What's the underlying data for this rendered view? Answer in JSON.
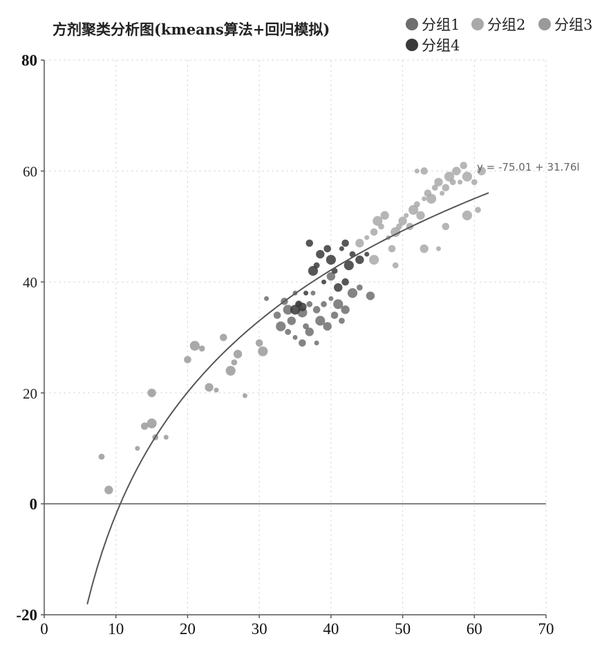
{
  "chart_data": {
    "type": "scatter",
    "title": "方剂聚类分析图(kmeans算法+回归模拟)",
    "xlim": [
      0,
      70
    ],
    "ylim": [
      -20,
      80
    ],
    "x_ticks": [
      "0",
      "10",
      "20",
      "30",
      "40",
      "50",
      "60",
      "70"
    ],
    "y_ticks": [
      "-20",
      "0",
      "20",
      "40",
      "60",
      "80"
    ],
    "grid": true,
    "legend_position": "top-right",
    "colors": {
      "分组1": "#6e6e6e",
      "分组2": "#a9a9a9",
      "分组3": "#9a9a9a",
      "分组4": "#3a3a3a",
      "trend": "#555555"
    },
    "series": [
      {
        "name": "分组1",
        "points": [
          [
            31,
            37
          ],
          [
            32.5,
            34
          ],
          [
            33,
            32
          ],
          [
            34,
            31
          ],
          [
            34.5,
            33
          ],
          [
            35,
            30
          ],
          [
            35.5,
            36
          ],
          [
            36,
            34.5
          ],
          [
            36.5,
            32
          ],
          [
            37,
            31
          ],
          [
            37.5,
            38
          ],
          [
            38,
            35
          ],
          [
            38.5,
            33
          ],
          [
            39,
            36
          ],
          [
            39.5,
            32
          ],
          [
            40,
            37
          ],
          [
            40.5,
            34
          ],
          [
            41,
            36
          ],
          [
            41.5,
            33
          ],
          [
            42,
            35
          ],
          [
            38,
            29
          ],
          [
            36,
            29
          ],
          [
            43,
            38
          ],
          [
            44,
            39
          ],
          [
            45.5,
            37.5
          ],
          [
            35,
            38
          ],
          [
            33.5,
            36.5
          ],
          [
            34,
            35
          ],
          [
            37,
            36
          ],
          [
            40,
            41
          ]
        ]
      },
      {
        "name": "分组2",
        "points": [
          [
            44,
            47
          ],
          [
            45,
            48
          ],
          [
            46,
            49
          ],
          [
            46.5,
            51
          ],
          [
            47,
            50
          ],
          [
            47.5,
            52
          ],
          [
            48,
            48
          ],
          [
            48.5,
            46
          ],
          [
            49,
            49
          ],
          [
            49.5,
            50
          ],
          [
            50,
            51
          ],
          [
            50.5,
            52
          ],
          [
            51,
            50
          ],
          [
            51.5,
            53
          ],
          [
            52,
            54
          ],
          [
            52.5,
            52
          ],
          [
            53,
            55
          ],
          [
            53.5,
            56
          ],
          [
            54,
            55
          ],
          [
            54.5,
            57
          ],
          [
            55,
            58
          ],
          [
            55.5,
            56
          ],
          [
            56,
            57
          ],
          [
            56.5,
            59
          ],
          [
            57,
            58
          ],
          [
            57.5,
            60
          ],
          [
            58,
            58
          ],
          [
            58.5,
            61
          ],
          [
            59,
            59
          ],
          [
            60,
            58
          ],
          [
            61,
            60
          ],
          [
            52,
            60
          ],
          [
            53,
            60
          ],
          [
            46,
            44
          ],
          [
            49,
            43
          ],
          [
            53,
            46
          ],
          [
            55,
            46
          ],
          [
            56,
            50
          ],
          [
            59,
            52
          ],
          [
            60.5,
            53
          ]
        ]
      },
      {
        "name": "分组3",
        "points": [
          [
            8,
            8.5
          ],
          [
            9,
            2.5
          ],
          [
            13,
            10
          ],
          [
            14,
            14
          ],
          [
            15,
            14.5
          ],
          [
            15.5,
            12
          ],
          [
            15,
            20
          ],
          [
            17,
            12
          ],
          [
            20,
            26
          ],
          [
            21,
            28.5
          ],
          [
            22,
            28
          ],
          [
            23,
            21
          ],
          [
            24,
            20.5
          ],
          [
            25,
            30
          ],
          [
            26,
            24
          ],
          [
            26.5,
            25.5
          ],
          [
            27,
            27
          ],
          [
            28,
            19.5
          ],
          [
            30,
            29
          ],
          [
            30.5,
            27.5
          ]
        ]
      },
      {
        "name": "分组4",
        "points": [
          [
            35,
            35
          ],
          [
            35.5,
            36
          ],
          [
            36,
            35.5
          ],
          [
            36.5,
            38
          ],
          [
            37,
            47
          ],
          [
            37.5,
            42
          ],
          [
            38,
            43
          ],
          [
            38.5,
            45
          ],
          [
            39,
            40
          ],
          [
            39.5,
            46
          ],
          [
            40,
            44
          ],
          [
            40.5,
            42
          ],
          [
            41,
            39
          ],
          [
            41.5,
            46
          ],
          [
            42,
            47
          ],
          [
            42.5,
            43
          ],
          [
            43,
            45
          ],
          [
            44,
            44
          ],
          [
            45,
            45
          ],
          [
            42,
            40
          ]
        ]
      }
    ],
    "trendline": {
      "label": "y = -75.01 + 31.76l",
      "intercept": -75.01,
      "slope": 31.76,
      "x_range": [
        6,
        62
      ]
    }
  }
}
